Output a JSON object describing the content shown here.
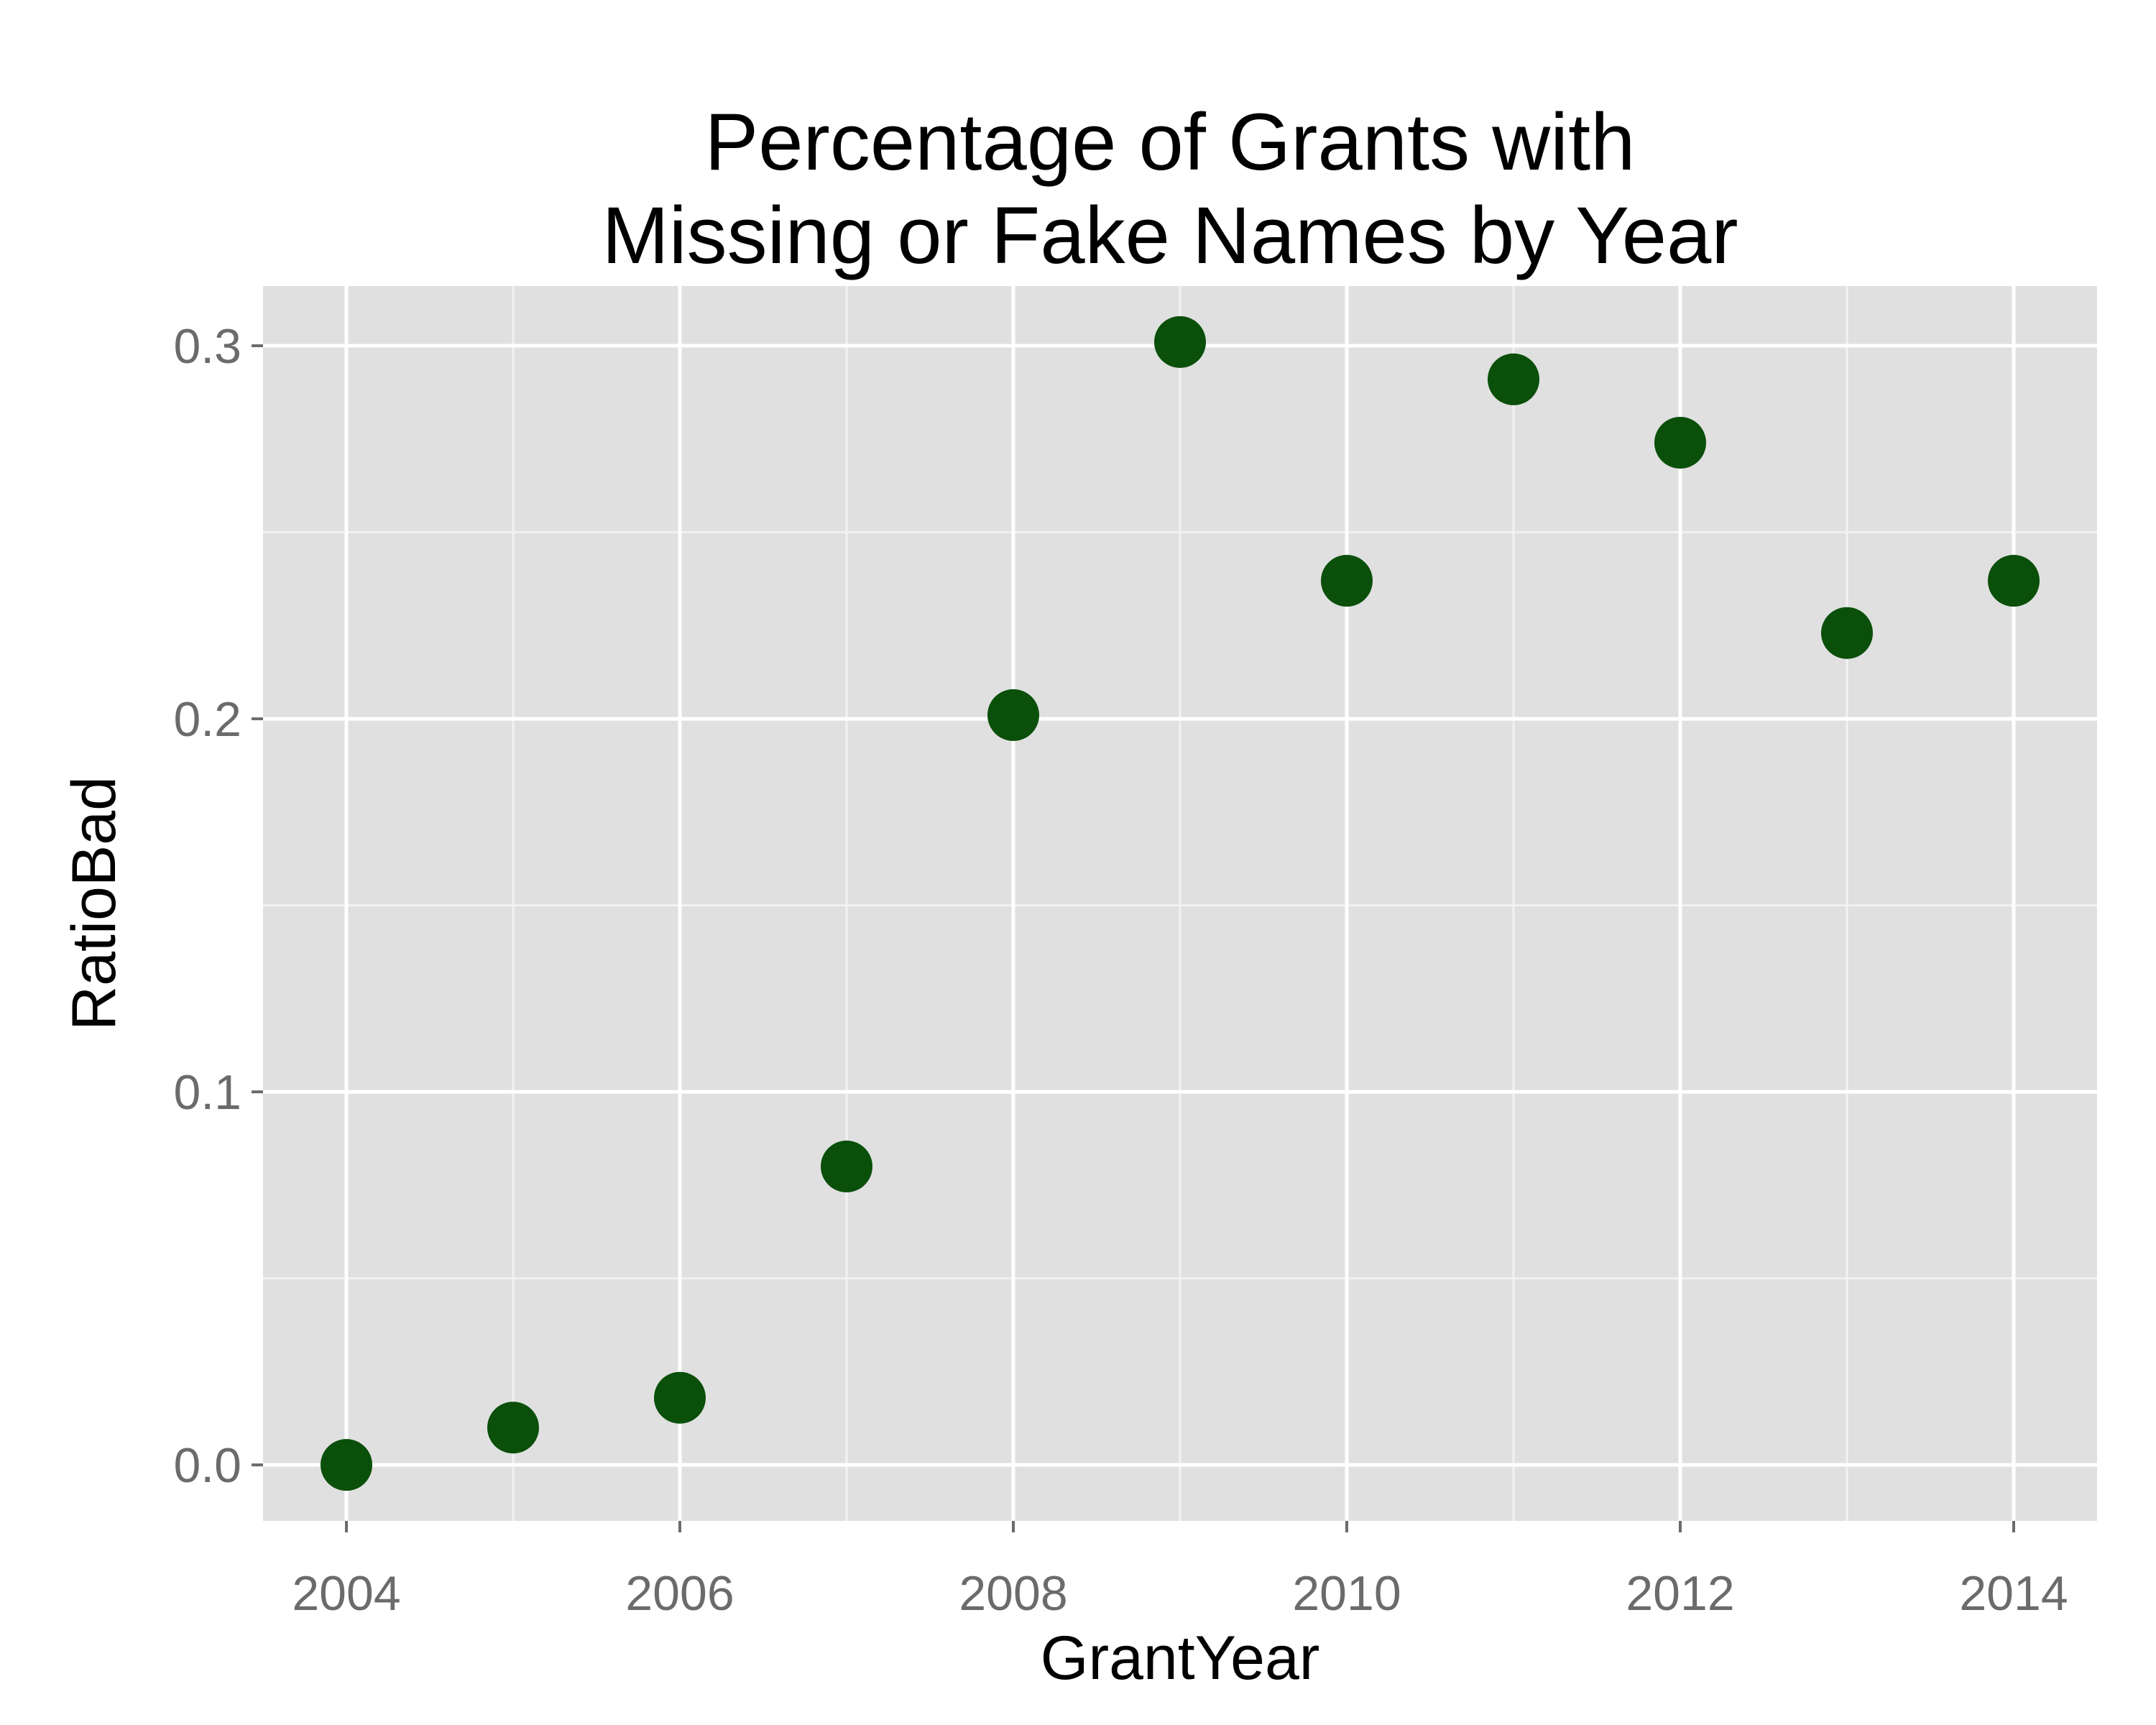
{
  "chart_data": {
    "type": "scatter",
    "title_lines": [
      "Percentage of Grants with",
      "Missing or Fake Names by Year"
    ],
    "xlabel": "GrantYear",
    "ylabel": "RatioBad",
    "x": [
      2004,
      2005,
      2006,
      2007,
      2008,
      2009,
      2010,
      2011,
      2012,
      2013,
      2014
    ],
    "y": [
      0.0,
      0.01,
      0.018,
      0.08,
      0.201,
      0.301,
      0.237,
      0.291,
      0.274,
      0.223,
      0.237
    ],
    "xlim": [
      2003.5,
      2014.5
    ],
    "ylim": [
      -0.015,
      0.316
    ],
    "x_ticks": [
      2004,
      2006,
      2008,
      2010,
      2012,
      2014
    ],
    "x_tick_labels": [
      "2004",
      "2006",
      "2008",
      "2010",
      "2012",
      "2014"
    ],
    "x_minor_ticks": [
      2005,
      2007,
      2009,
      2011,
      2013
    ],
    "y_ticks": [
      0.0,
      0.1,
      0.2,
      0.3
    ],
    "y_tick_labels": [
      "0.0",
      "0.1",
      "0.2",
      "0.3"
    ],
    "y_minor_ticks": [
      0.05,
      0.15,
      0.25
    ],
    "grid": true,
    "legend": "none",
    "colors": {
      "point": "#0a4f0a",
      "panel": "#e0e0e0",
      "grid_major": "#ffffff",
      "grid_minor": "#f2f2f2",
      "tick_text": "#6b6b6b",
      "tick_mark": "#6b6b6b"
    }
  }
}
